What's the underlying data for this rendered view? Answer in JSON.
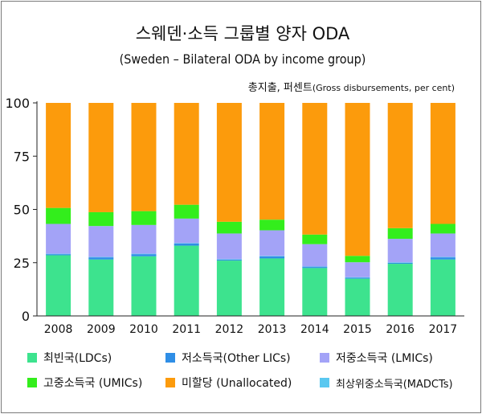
{
  "chart_data": {
    "type": "bar",
    "stacked": true,
    "title": "스웨덴·소득 그룹별 양자 ODA",
    "subtitle": "(Sweden – Bilateral ODA by income group)",
    "unit_label": "총지출, 퍼센트",
    "unit_label_en": "(Gross disbursements, per cent)",
    "xlabel": "",
    "ylabel": "",
    "ylim": [
      0,
      100
    ],
    "yticks": [
      0,
      25,
      50,
      75,
      100
    ],
    "grid": false,
    "legend_position": "bottom",
    "categories": [
      "2008",
      "2009",
      "2010",
      "2011",
      "2012",
      "2013",
      "2014",
      "2015",
      "2016",
      "2017"
    ],
    "series": [
      {
        "name": "최빈국(LDCs)",
        "color": "#3de38e",
        "values": [
          28.5,
          26.5,
          28,
          33,
          26,
          27,
          22.5,
          17.5,
          24.5,
          26.5
        ]
      },
      {
        "name": "저소득국(Other LICs)",
        "color": "#2f8ee6",
        "values": [
          0.5,
          1,
          1,
          1,
          0.5,
          1,
          0.5,
          0.5,
          0.5,
          1
        ]
      },
      {
        "name": "최상위중소득국(MADCTs)",
        "color": "#5ac8f0",
        "values": [
          0.2,
          0.2,
          0.2,
          0.2,
          0.2,
          0.2,
          0.2,
          0.2,
          0.2,
          0.2
        ]
      },
      {
        "name": "저중소득국 (LMICs)",
        "color": "#a3a3f7",
        "values": [
          14,
          14.5,
          13.5,
          11.5,
          12,
          12,
          10.5,
          7,
          11,
          11
        ]
      },
      {
        "name": "고중소득국 (UMICs)",
        "color": "#33ee1c",
        "values": [
          7.5,
          6.5,
          6.5,
          6.5,
          5.5,
          5,
          4.5,
          3,
          5,
          4.5
        ]
      },
      {
        "name": "미할당 (Unallocated)",
        "color": "#fc9b0c",
        "values": [
          49.3,
          51.3,
          50.8,
          47.8,
          55.8,
          54.8,
          61.8,
          71.8,
          58.8,
          56.8
        ]
      }
    ],
    "legend": [
      {
        "label": "최빈국(LDCs)",
        "color": "#3de38e"
      },
      {
        "label": "저소득국(Other LICs)",
        "color": "#2f8ee6"
      },
      {
        "label": "저중소득국 (LMICs)",
        "color": "#a3a3f7"
      },
      {
        "label": "고중소득국 (UMICs)",
        "color": "#33ee1c"
      },
      {
        "label": "미할당 (Unallocated)",
        "color": "#fc9b0c"
      },
      {
        "label": "최상위중소득국(MADCTs)",
        "color": "#5ac8f0"
      }
    ]
  }
}
